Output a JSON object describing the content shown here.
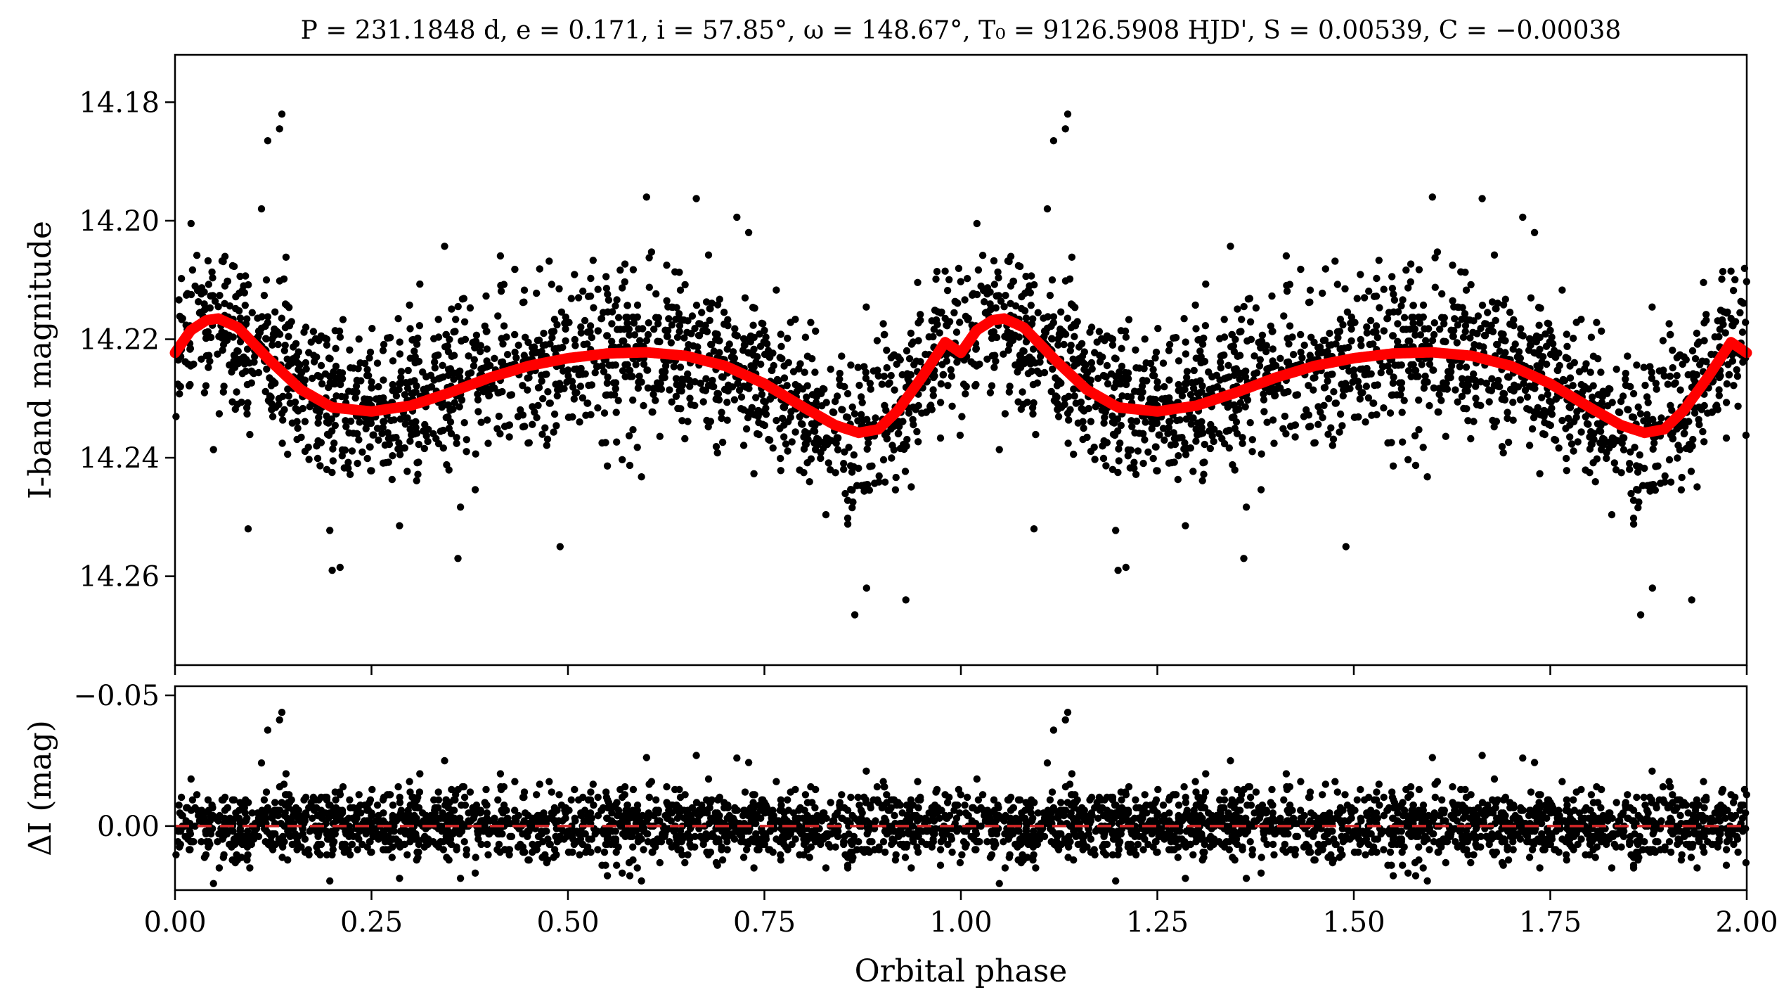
{
  "chart_data": {
    "type": "scatter",
    "title": "P = 231.1848 d, e = 0.171, i = 57.85°, ω = 148.67°, T₀ = 9126.5908 HJD', S = 0.00539, C = −0.00038",
    "xlabel": "Orbital phase",
    "xlim": [
      0,
      2
    ],
    "x_ticks": [
      "0.00",
      "0.25",
      "0.50",
      "0.75",
      "1.00",
      "1.25",
      "1.50",
      "1.75",
      "2.00"
    ],
    "x_tick_values": [
      0,
      0.25,
      0.5,
      0.75,
      1.0,
      1.25,
      1.5,
      1.75,
      2.0
    ],
    "grid": false,
    "panels": [
      {
        "name": "light-curve",
        "ylabel": "I-band magnitude",
        "ylim": [
          14.275,
          14.172
        ],
        "inverted_y": true,
        "y_ticks": [
          "14.18",
          "14.20",
          "14.22",
          "14.24",
          "14.26"
        ],
        "y_tick_values": [
          14.18,
          14.2,
          14.22,
          14.24,
          14.26
        ],
        "series": [
          {
            "kind": "points",
            "color": "#000000",
            "scatter_sigma": 0.0065,
            "n_points_per_cycle": 1700
          },
          {
            "kind": "model",
            "color": "#ff0000",
            "x": [
              0.0,
              0.02,
              0.04,
              0.055,
              0.08,
              0.12,
              0.16,
              0.2,
              0.25,
              0.3,
              0.35,
              0.4,
              0.45,
              0.5,
              0.55,
              0.6,
              0.65,
              0.7,
              0.75,
              0.8,
              0.84,
              0.87,
              0.895,
              0.92,
              0.95,
              0.98,
              1.0
            ],
            "y": [
              14.2223,
              14.2185,
              14.2168,
              14.2165,
              14.218,
              14.2235,
              14.2285,
              14.2315,
              14.2322,
              14.2312,
              14.229,
              14.2265,
              14.2245,
              14.2232,
              14.2224,
              14.2222,
              14.2228,
              14.2245,
              14.2275,
              14.2315,
              14.2345,
              14.2358,
              14.2352,
              14.232,
              14.2265,
              14.2205,
              14.2223
            ]
          }
        ],
        "outliers": [
          {
            "x": 0.118,
            "y": 14.1865
          },
          {
            "x": 0.133,
            "y": 14.1845
          },
          {
            "x": 0.136,
            "y": 14.182
          },
          {
            "x": 0.11,
            "y": 14.198
          },
          {
            "x": 0.6,
            "y": 14.196
          },
          {
            "x": 0.73,
            "y": 14.202
          },
          {
            "x": 0.093,
            "y": 14.252
          },
          {
            "x": 0.2,
            "y": 14.259
          },
          {
            "x": 0.21,
            "y": 14.2585
          },
          {
            "x": 0.36,
            "y": 14.257
          },
          {
            "x": 0.49,
            "y": 14.255
          },
          {
            "x": 0.865,
            "y": 14.2665
          },
          {
            "x": 0.93,
            "y": 14.264
          },
          {
            "x": 0.88,
            "y": 14.262
          }
        ]
      },
      {
        "name": "residuals",
        "ylabel": "ΔI (mag)",
        "ylim": [
          0.0245,
          -0.0535
        ],
        "inverted_y": true,
        "y_ticks": [
          "−0.05",
          "0.00"
        ],
        "y_tick_values": [
          -0.05,
          0.0
        ],
        "series": [
          {
            "kind": "points",
            "color": "#000000",
            "scatter_sigma": 0.0065
          },
          {
            "kind": "zero-line",
            "color": "#d62728",
            "y": 0.0,
            "dashed": true
          }
        ],
        "outliers": [
          {
            "x": 0.118,
            "y": -0.036
          },
          {
            "x": 0.133,
            "y": -0.038
          },
          {
            "x": 0.136,
            "y": -0.04
          },
          {
            "x": 0.6,
            "y": -0.027
          },
          {
            "x": 0.095,
            "y": 0.021
          },
          {
            "x": 0.865,
            "y": 0.018
          },
          {
            "x": 0.93,
            "y": 0.0165
          }
        ]
      }
    ]
  }
}
